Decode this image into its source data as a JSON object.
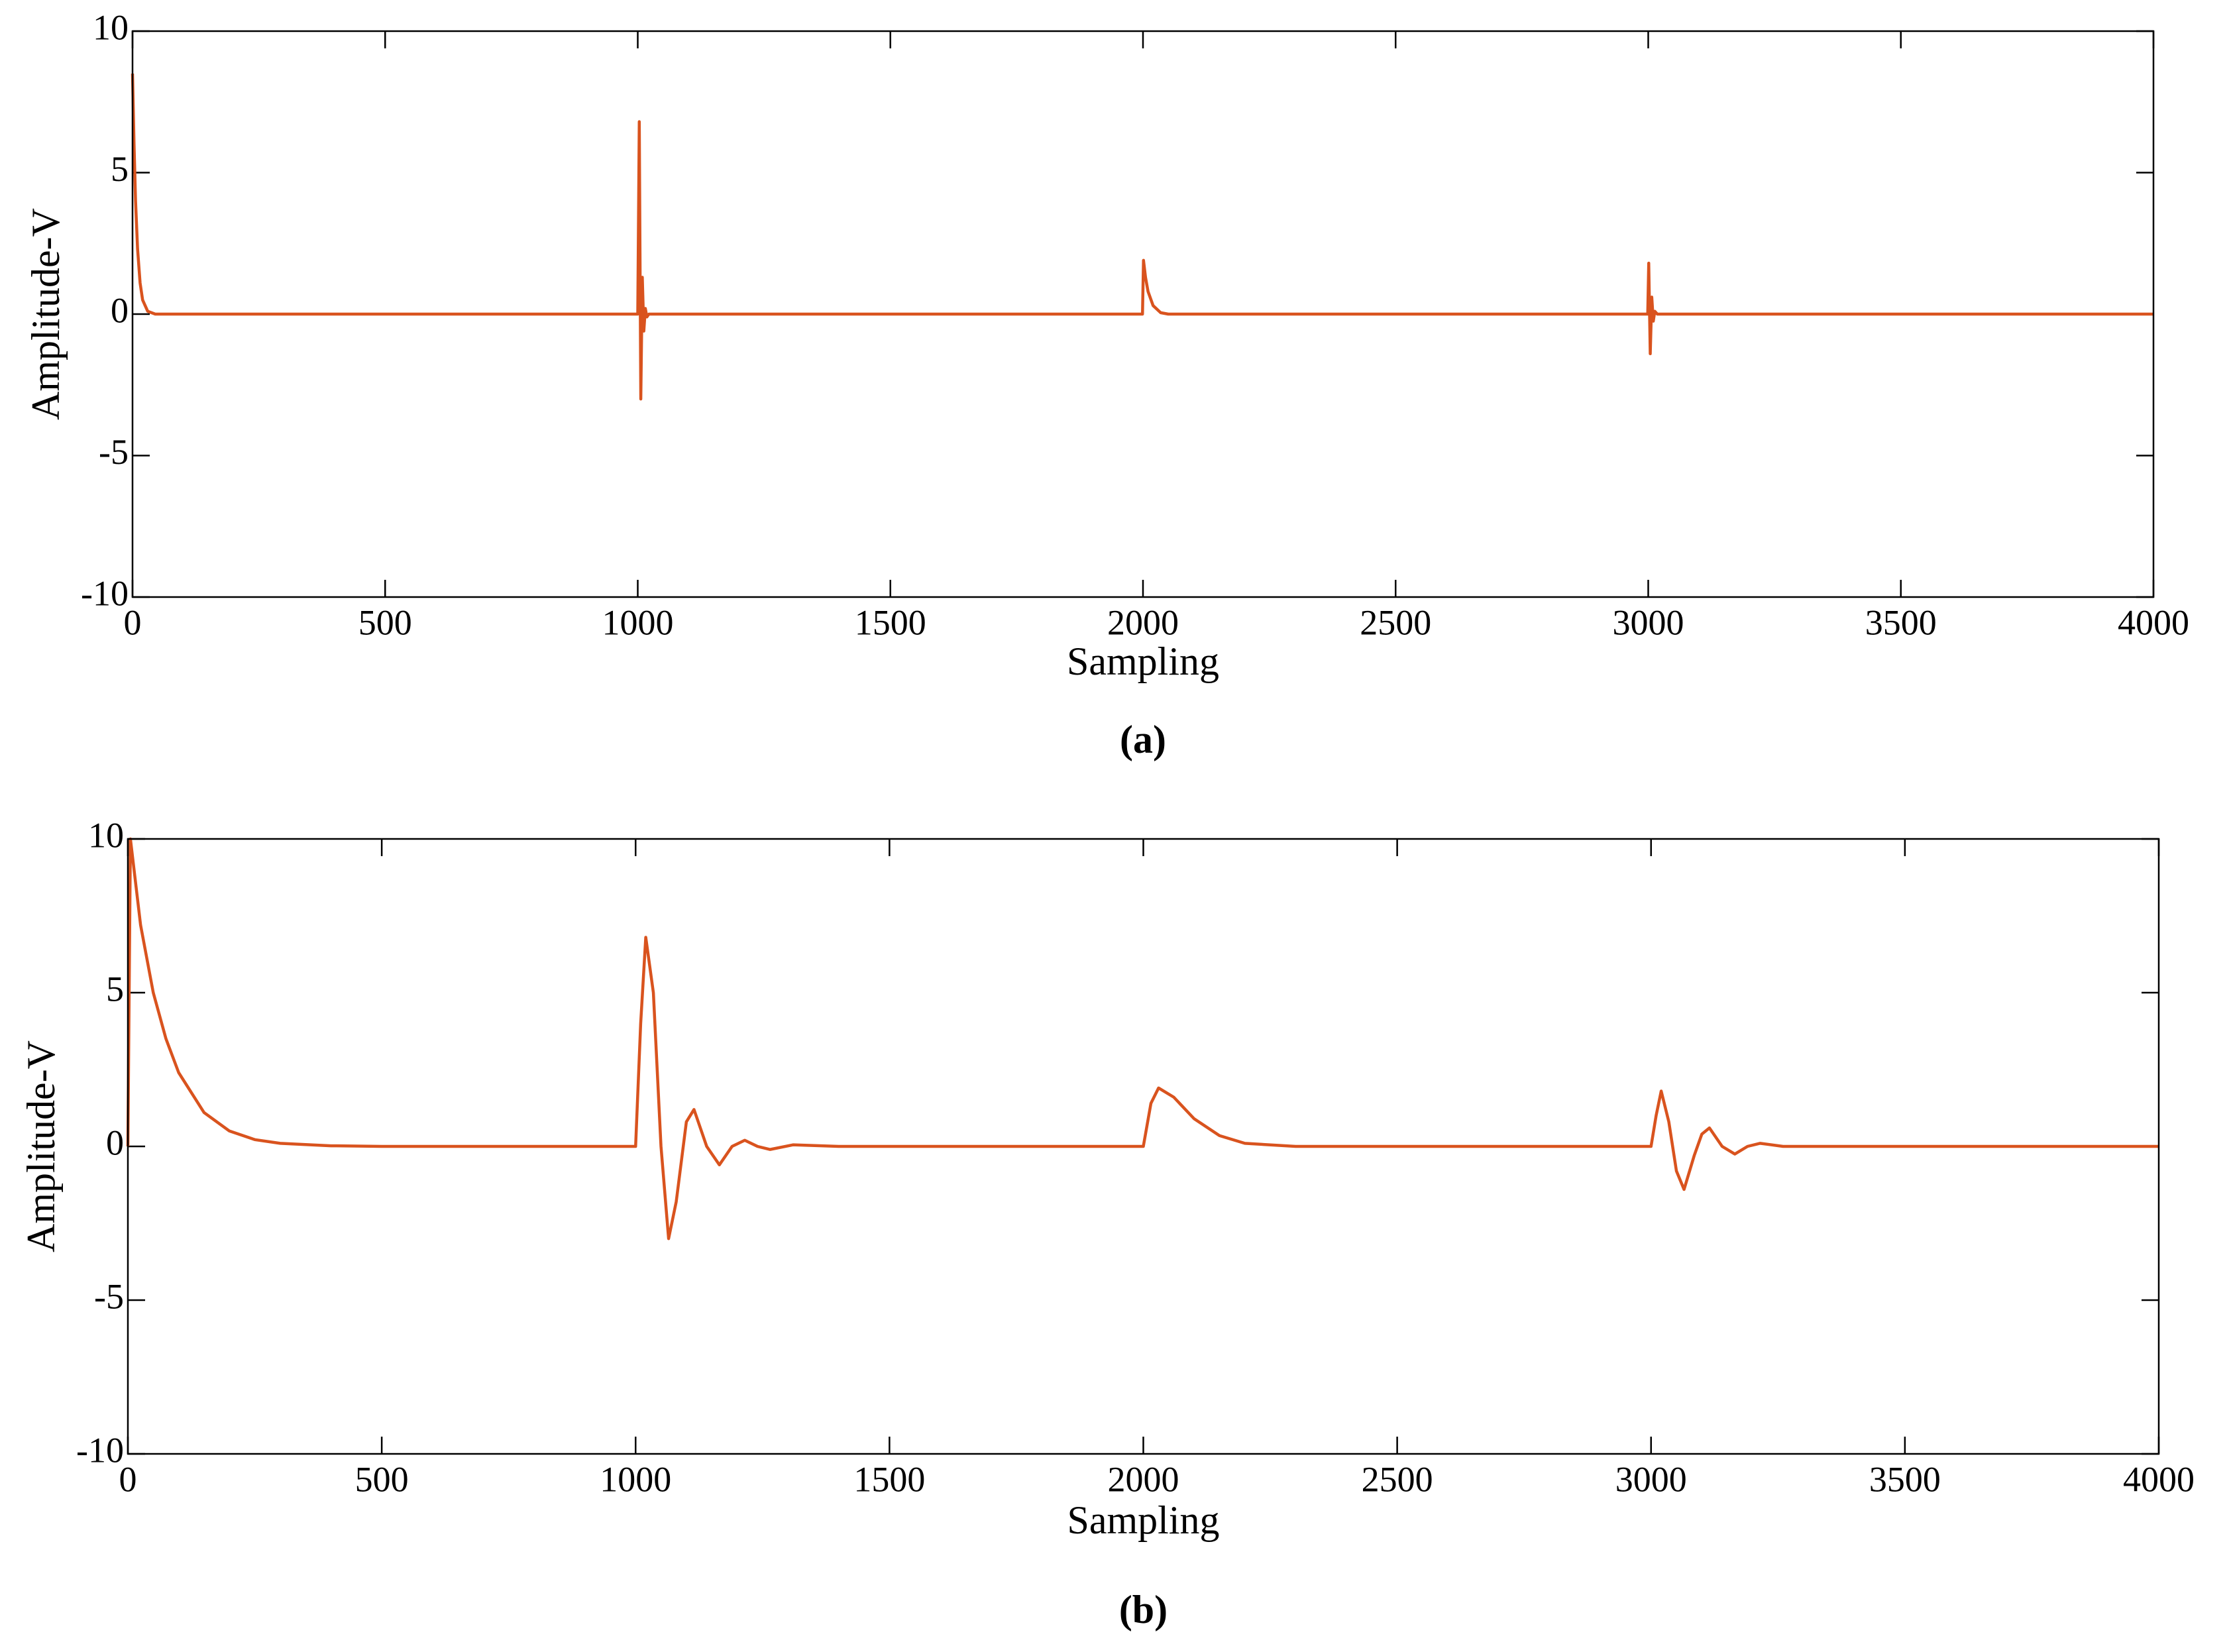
{
  "chart_data": [
    {
      "type": "line",
      "caption": "(a)",
      "xlabel": "Sampling",
      "ylabel": "Amplitude-V",
      "xlim": [
        0,
        4000
      ],
      "ylim": [
        -10,
        10
      ],
      "xticks": [
        0,
        500,
        1000,
        1500,
        2000,
        2500,
        3000,
        3500,
        4000
      ],
      "yticks": [
        -10,
        -5,
        0,
        5,
        10
      ],
      "x": [
        0,
        3,
        6,
        10,
        15,
        20,
        30,
        45,
        995,
        1000,
        1003,
        1006,
        1009,
        1012,
        1015,
        1018,
        1022,
        1999,
        2001,
        2005,
        2010,
        2020,
        2035,
        2050,
        2999,
        3001,
        3004,
        3007,
        3010,
        3013,
        3018,
        4000
      ],
      "series": [
        {
          "color": "#d9531e",
          "values": [
            8.5,
            6,
            4,
            2.3,
            1.1,
            0.5,
            0.1,
            0,
            0,
            0,
            6.8,
            -3,
            1.3,
            -0.6,
            0.2,
            -0.1,
            0,
            0,
            1.9,
            1.3,
            0.8,
            0.3,
            0.05,
            0,
            0,
            1.8,
            -1.4,
            0.6,
            -0.25,
            0.1,
            0,
            0
          ]
        }
      ]
    },
    {
      "type": "line",
      "caption": "(b)",
      "xlabel": "Sampling",
      "ylabel": "Amplitude-V",
      "xlim": [
        0,
        4000
      ],
      "ylim": [
        -10,
        10
      ],
      "xticks": [
        0,
        500,
        1000,
        1500,
        2000,
        2500,
        3000,
        3500,
        4000
      ],
      "yticks": [
        -10,
        -5,
        0,
        5,
        10
      ],
      "x": [
        0,
        5,
        25,
        50,
        75,
        100,
        150,
        200,
        250,
        300,
        400,
        500,
        1000,
        1010,
        1020,
        1035,
        1050,
        1065,
        1080,
        1100,
        1115,
        1140,
        1165,
        1190,
        1215,
        1240,
        1265,
        1310,
        1400,
        2000,
        2015,
        2030,
        2060,
        2100,
        2150,
        2200,
        2300,
        3000,
        3010,
        3020,
        3035,
        3050,
        3065,
        3085,
        3100,
        3115,
        3140,
        3165,
        3190,
        3215,
        3260,
        4000
      ],
      "series": [
        {
          "color": "#d9531e",
          "values": [
            0,
            10,
            7.2,
            5,
            3.5,
            2.4,
            1.1,
            0.5,
            0.22,
            0.1,
            0.02,
            0,
            0,
            4,
            6.8,
            5,
            0,
            -3,
            -1.8,
            0.8,
            1.2,
            0,
            -0.6,
            0,
            0.2,
            0,
            -0.1,
            0.05,
            0,
            0,
            1.4,
            1.9,
            1.6,
            0.9,
            0.35,
            0.1,
            0,
            0,
            1,
            1.8,
            0.8,
            -0.8,
            -1.4,
            -0.3,
            0.4,
            0.6,
            0,
            -0.25,
            0,
            0.1,
            0,
            0
          ]
        }
      ]
    }
  ]
}
